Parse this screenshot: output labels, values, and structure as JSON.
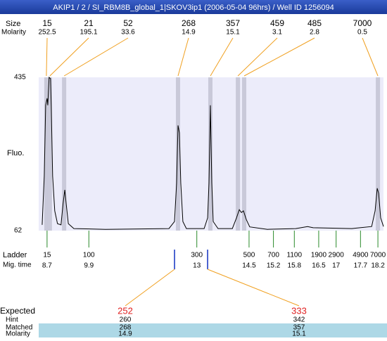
{
  "title": "AKIP1 / 2 / SI_RBM8B_global_1|SKOV3ip1 (2006-05-04 96hrs) / Well ID 1256094",
  "chart_data": {
    "type": "line",
    "ylabel": "Fluo.",
    "color": "#000000",
    "x": [
      8.56,
      8.62,
      8.66,
      8.7,
      8.72,
      8.76,
      8.8,
      8.82,
      8.86,
      8.92,
      9.0,
      9.1,
      9.16,
      9.21,
      9.25,
      9.31,
      9.47,
      10.38,
      12.2,
      12.36,
      12.42,
      12.46,
      12.5,
      12.54,
      12.6,
      12.7,
      13.21,
      13.31,
      13.35,
      13.39,
      13.43,
      13.47,
      13.61,
      14.02,
      14.14,
      14.22,
      14.28,
      14.34,
      14.42,
      14.52,
      15.03,
      15.84,
      16.18,
      16.34,
      17.45,
      18.02,
      18.12,
      18.18,
      18.22,
      18.28,
      18.36
    ],
    "values": [
      76,
      195,
      367,
      384,
      367,
      435,
      432,
      367,
      195,
      110,
      79,
      76,
      127,
      161,
      127,
      79,
      67,
      65,
      67,
      84,
      178,
      318,
      300,
      178,
      84,
      67,
      67,
      93,
      178,
      367,
      178,
      84,
      67,
      67,
      93,
      113,
      106,
      110,
      89,
      71,
      65,
      67,
      72,
      69,
      67,
      72,
      110,
      165,
      153,
      93,
      72
    ],
    "xlim": [
      8.46,
      18.36
    ],
    "ylim": [
      62,
      435
    ],
    "yticks": [
      62,
      435
    ]
  },
  "peaks": {
    "size_label": "Size",
    "molarity_label": "Molarity",
    "items": [
      {
        "size": 15,
        "molarity": 252.5,
        "mig_time": 8.68
      },
      {
        "size": 21,
        "molarity": 195.1,
        "mig_time": 8.78
      },
      {
        "size": 52,
        "molarity": 33.6,
        "mig_time": 9.19
      },
      {
        "size": 268,
        "molarity": 14.9,
        "mig_time": 12.46
      },
      {
        "size": 357,
        "molarity": 15.1,
        "mig_time": 13.39
      },
      {
        "size": 459,
        "molarity": 3.1,
        "mig_time": 14.18
      },
      {
        "size": 485,
        "molarity": 2.8,
        "mig_time": 14.36
      },
      {
        "size": 7000,
        "molarity": 0.5,
        "mig_time": 18.2
      }
    ]
  },
  "ladder": {
    "label": "Ladder",
    "mig_time_label": "Mig. time",
    "items": [
      {
        "size": 15,
        "mig_time": 8.7
      },
      {
        "size": 100,
        "mig_time": 9.9
      },
      {
        "size": 300,
        "mig_time": 13
      },
      {
        "size": 500,
        "mig_time": 14.5
      },
      {
        "size": 700,
        "mig_time": 15.2
      },
      {
        "size": 1100,
        "mig_time": 15.8
      },
      {
        "size": 1900,
        "mig_time": 16.5
      },
      {
        "size": 2900,
        "mig_time": 17
      },
      {
        "size": 4900,
        "mig_time": 17.7
      },
      {
        "size": 7000,
        "mig_time": 18.2
      }
    ]
  },
  "expected": {
    "row_labels": [
      "Expected",
      "Hint",
      "Matched",
      "Molarity"
    ],
    "items": [
      {
        "expected": 252,
        "hint": 260,
        "matched": 268,
        "molarity": 14.9,
        "mig_time": 12.36
      },
      {
        "expected": 333,
        "hint": 342,
        "matched": 357,
        "molarity": 15.1,
        "mig_time": 13.31
      }
    ]
  }
}
